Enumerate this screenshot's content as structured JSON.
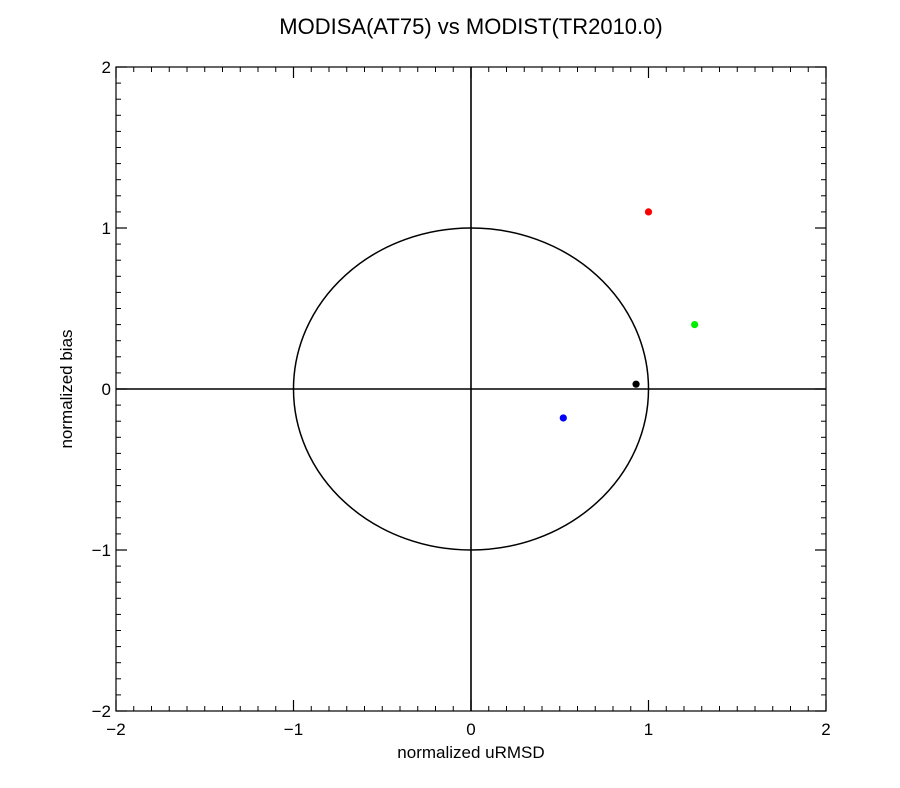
{
  "chart_data": {
    "type": "scatter",
    "title": "MODISA(AT75) vs MODIST(TR2010.0)",
    "xlabel": "normalized uRMSD",
    "ylabel": "normalized bias",
    "xlim": [
      -2,
      2
    ],
    "ylim": [
      -2,
      2
    ],
    "xticks": [
      -2,
      -1,
      0,
      1,
      2
    ],
    "yticks": [
      -2,
      -1,
      0,
      1,
      2
    ],
    "xtick_labels": [
      "−2",
      "−1",
      "0",
      "1",
      "2"
    ],
    "ytick_labels": [
      "−2",
      "−1",
      "0",
      "1",
      "2"
    ],
    "minor_tick_step": 0.1,
    "reference_circle_radius": 1,
    "reference_lines": {
      "x": 0,
      "y": 0
    },
    "grid": false,
    "points": [
      {
        "x": 1.0,
        "y": 1.1,
        "color": "#ff0000"
      },
      {
        "x": 1.26,
        "y": 0.4,
        "color": "#00ee00"
      },
      {
        "x": 0.93,
        "y": 0.03,
        "color": "#000000"
      },
      {
        "x": 0.52,
        "y": -0.18,
        "color": "#0000ff"
      }
    ]
  }
}
